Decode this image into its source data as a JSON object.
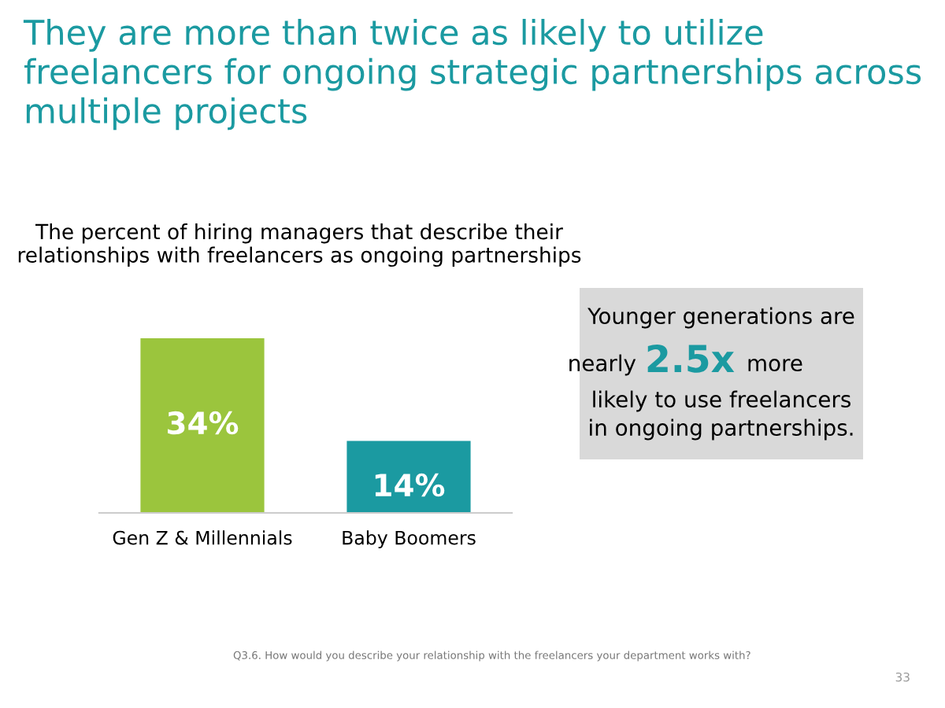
{
  "chart_data": {
    "type": "bar",
    "title": "They are more than twice as likely to utilize freelancers for ongoing strategic partnerships across multiple projects",
    "subtitle": "The percent of hiring managers that describe their relationships with freelancers as ongoing partnerships",
    "categories": [
      "Gen Z & Millennials",
      "Baby Boomers"
    ],
    "values": [
      34,
      14
    ],
    "colors": [
      "#9bc53d",
      "#1b9aa1"
    ],
    "data_labels": true,
    "value_labels": [
      "34%",
      "14%"
    ],
    "annotations": [
      "Younger generations are",
      "nearly",
      "2.5x",
      "more",
      "likely to use freelancers",
      "in ongoing partnerships.",
      "Q3.6. How would you describe your relationship with the freelancers your department works with?",
      "33"
    ],
    "grid": false,
    "legend": false
  }
}
